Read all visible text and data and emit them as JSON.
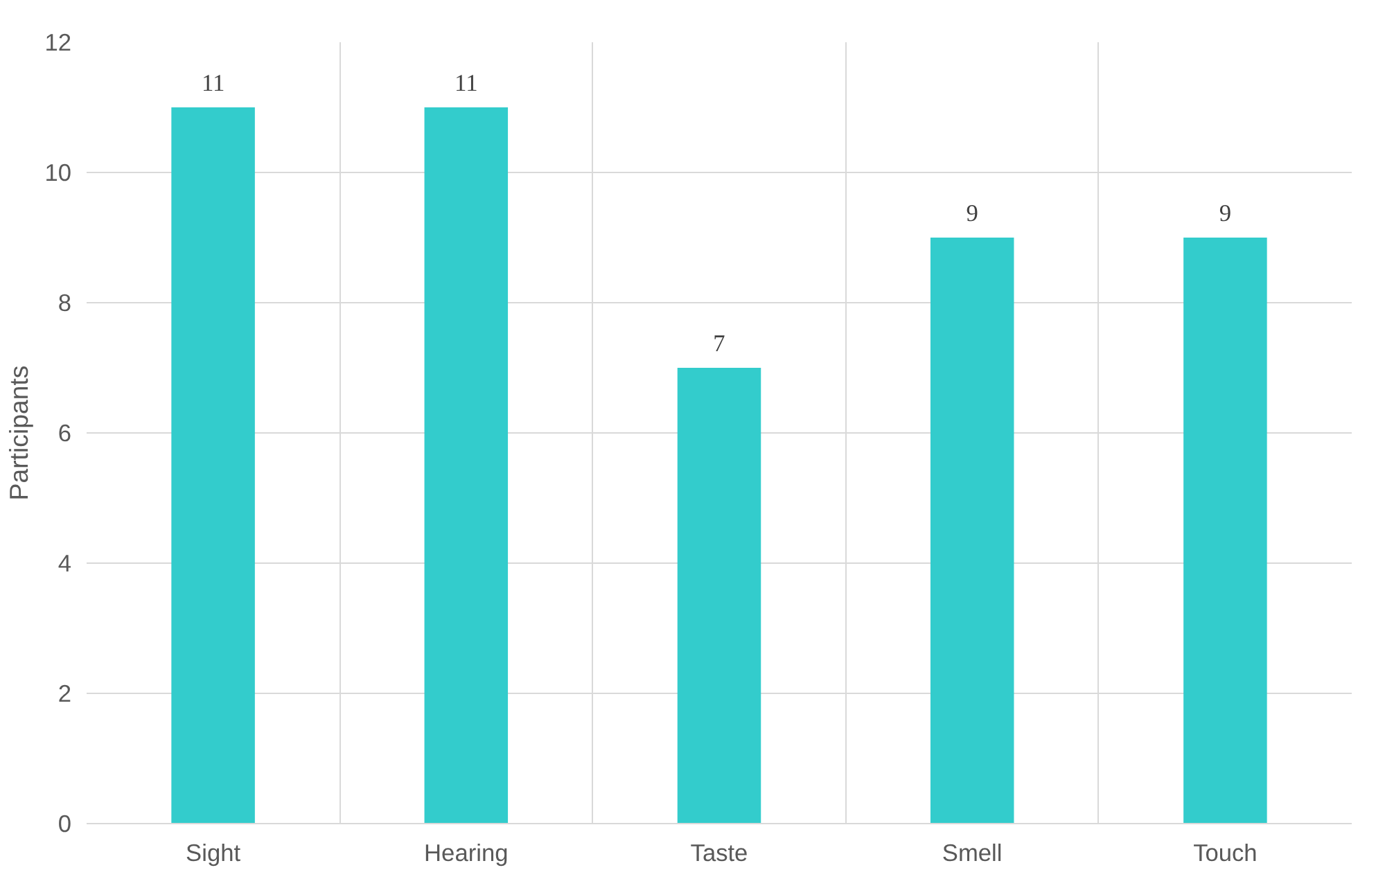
{
  "chart_data": {
    "type": "bar",
    "ylabel": "Participants",
    "categories": [
      "Sight",
      "Hearing",
      "Taste",
      "Smell",
      "Touch"
    ],
    "values": [
      11,
      11,
      7,
      9,
      9
    ],
    "color": "#33cccc",
    "ylim": [
      0,
      12
    ],
    "yticks": [
      0,
      2,
      4,
      6,
      8,
      10,
      12
    ],
    "grid": true,
    "data_labels": true
  }
}
